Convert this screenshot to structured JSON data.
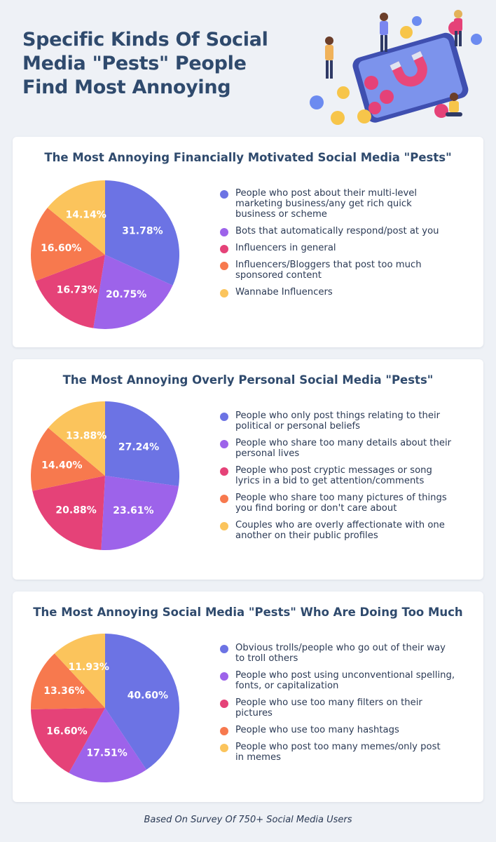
{
  "header": {
    "title_lines": [
      "Specific Kinds Of Social",
      "Media \"Pests\" People",
      "Find Most Annoying"
    ]
  },
  "colors": {
    "blue": "#6c73e4",
    "purple": "#9d63ea",
    "pink": "#e54278",
    "orange": "#f7794e",
    "yellow": "#fbc45c"
  },
  "chart_data": [
    {
      "type": "pie",
      "title": "The Most Annoying Financially Motivated Social Media \"Pests\"",
      "categories": [
        "People who post about their multi-level marketing business/any get rich quick business or scheme",
        "Bots that automatically respond/post at you",
        "Influencers in general",
        "Influencers/Bloggers that post too much sponsored content",
        "Wannabe Influencers"
      ],
      "legend_lines": [
        [
          "People who post about their multi-level",
          "marketing business/any get rich quick",
          "business or scheme"
        ],
        [
          "Bots that automatically respond/post at you"
        ],
        [
          "Influencers in general"
        ],
        [
          "Influencers/Bloggers that post too much",
          "sponsored content"
        ],
        [
          "Wannabe Influencers"
        ]
      ],
      "values": [
        31.78,
        20.75,
        16.73,
        16.6,
        14.14
      ],
      "labels": [
        "31.78%",
        "20.75%",
        "16.73%",
        "16.60%",
        "14.14%"
      ]
    },
    {
      "type": "pie",
      "title": "The Most Annoying Overly Personal Social Media \"Pests\"",
      "categories": [
        "People who only post things relating to their political or personal beliefs",
        "People who share too many details about their personal lives",
        "People who post cryptic messages or song lyrics in a bid to get attention/comments",
        "People who share too many pictures of things you find boring or don't care about",
        "Couples who are overly affectionate with one another on their public profiles"
      ],
      "legend_lines": [
        [
          "People who only post things relating to their",
          "political or personal beliefs"
        ],
        [
          "People who share too many details about their",
          "personal lives"
        ],
        [
          "People who post cryptic messages or song",
          "lyrics in a bid to get attention/comments"
        ],
        [
          "People who share too many pictures of things",
          "you find boring or don't care about"
        ],
        [
          "Couples who are overly affectionate with one",
          "another on their public profiles"
        ]
      ],
      "values": [
        27.24,
        23.61,
        20.88,
        14.4,
        13.88
      ],
      "labels": [
        "27.24%",
        "23.61%",
        "20.88%",
        "14.40%",
        "13.88%"
      ]
    },
    {
      "type": "pie",
      "title": "The Most Annoying Social Media \"Pests\" Who Are Doing Too Much",
      "categories": [
        "Obvious trolls/people who go out of their way to troll others",
        "People who post using unconventional spelling, fonts, or capitalization",
        "People who use too many filters on their pictures",
        "People who use too many hashtags",
        "People who post too many memes/only post in memes"
      ],
      "legend_lines": [
        [
          "Obvious trolls/people who go out of their way",
          "to troll others"
        ],
        [
          "People who post using unconventional spelling,",
          "fonts, or capitalization"
        ],
        [
          "People who use too many filters on their",
          "pictures"
        ],
        [
          "People who use too many hashtags"
        ],
        [
          "People who post too many memes/only post",
          "in memes"
        ]
      ],
      "values": [
        40.6,
        17.51,
        16.6,
        13.36,
        11.93
      ],
      "labels": [
        "40.60%",
        "17.51%",
        "16.60%",
        "13.36%",
        "11.93%"
      ]
    }
  ],
  "footer": {
    "text": "Based On Survey Of 750+ Social Media Users"
  }
}
